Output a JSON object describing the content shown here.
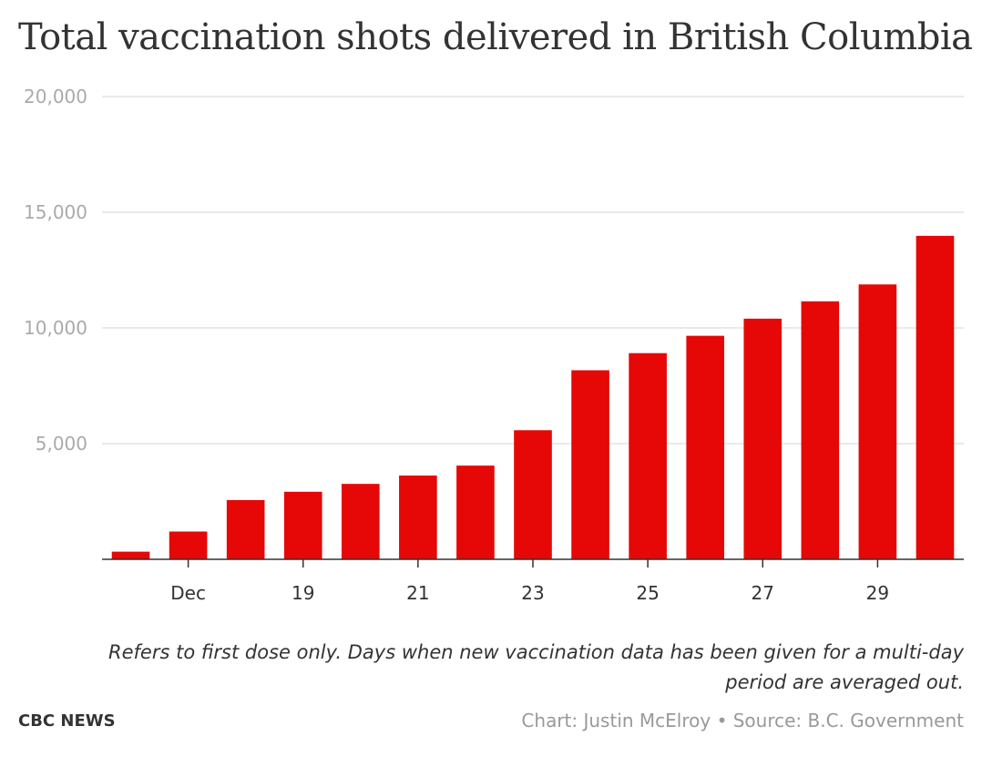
{
  "header": {
    "title": "Total vaccination shots delivered in British Columbia"
  },
  "footer": {
    "note": "Refers to first dose only. Days when new vaccination data has been given for a multi-day period are averaged out.",
    "brand": "CBC NEWS",
    "credit": "Chart: Justin McElroy • Source: B.C. Government"
  },
  "colors": {
    "bar": "#e60707",
    "grid": "#dddddd",
    "axis": "#333333",
    "ytick": "#aaaaaa"
  },
  "chart_data": {
    "type": "bar",
    "title": "Total vaccination shots delivered in British Columbia",
    "xlabel": "",
    "ylabel": "",
    "x": [
      "2020-12-16",
      "2020-12-17",
      "2020-12-18",
      "2020-12-19",
      "2020-12-20",
      "2020-12-21",
      "2020-12-22",
      "2020-12-23",
      "2020-12-24",
      "2020-12-25",
      "2020-12-26",
      "2020-12-27",
      "2020-12-28",
      "2020-12-29",
      "2020-12-30"
    ],
    "values": [
      330,
      1200,
      2560,
      2920,
      3260,
      3620,
      4050,
      5580,
      8170,
      8910,
      9660,
      10400,
      11150,
      11880,
      13980
    ],
    "ylim": [
      0,
      20000
    ],
    "yticks": [
      5000,
      10000,
      15000,
      20000
    ],
    "ytick_labels": [
      "5,000",
      "10,000",
      "15,000",
      "20,000"
    ],
    "xticks": [
      {
        "x": "2020-12-17",
        "label": "Dec"
      },
      {
        "x": "2020-12-19",
        "label": "19"
      },
      {
        "x": "2020-12-21",
        "label": "21"
      },
      {
        "x": "2020-12-23",
        "label": "23"
      },
      {
        "x": "2020-12-25",
        "label": "25"
      },
      {
        "x": "2020-12-27",
        "label": "27"
      },
      {
        "x": "2020-12-29",
        "label": "29"
      }
    ],
    "grid": true
  }
}
